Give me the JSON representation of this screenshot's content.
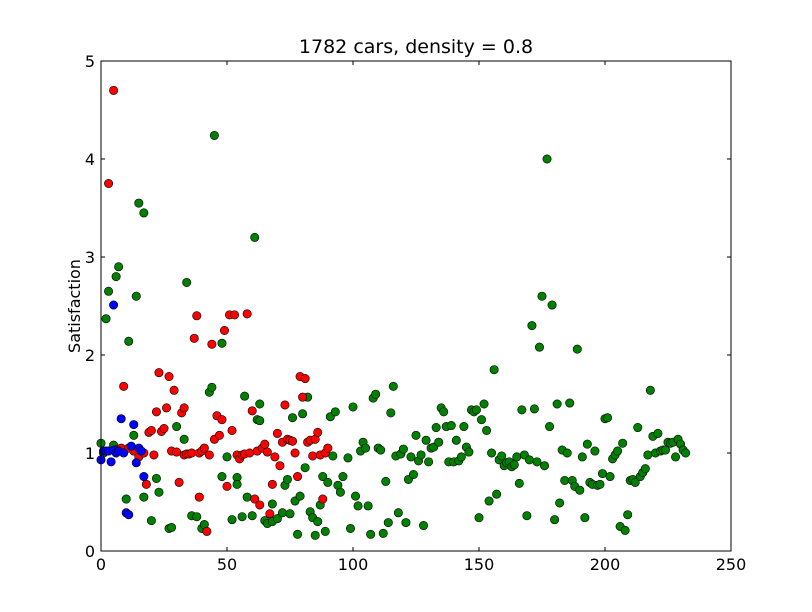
{
  "chart_data": {
    "type": "scatter",
    "title": "1782 cars, density = 0.8",
    "xlabel": "",
    "ylabel": "Satisfaction",
    "xlim": [
      0,
      250
    ],
    "ylim": [
      0,
      5
    ],
    "xticks": [
      "0",
      "50",
      "100",
      "150",
      "200",
      "250"
    ],
    "yticks": [
      "0",
      "1",
      "2",
      "3",
      "4",
      "5"
    ],
    "grid": false,
    "series": [
      {
        "color": "#008000",
        "points": [
          [
            0,
            1.1
          ],
          [
            1,
            1.0
          ],
          [
            2,
            2.37
          ],
          [
            3,
            2.65
          ],
          [
            5,
            1.08
          ],
          [
            6,
            2.8
          ],
          [
            7,
            2.9
          ],
          [
            10,
            0.53
          ],
          [
            11,
            2.14
          ],
          [
            13,
            1.18
          ],
          [
            14,
            2.6
          ],
          [
            15,
            3.55
          ],
          [
            16,
            1.0
          ],
          [
            17,
            3.45
          ],
          [
            17,
            0.55
          ],
          [
            20,
            0.31
          ],
          [
            22,
            0.74
          ],
          [
            23,
            0.6
          ],
          [
            27,
            0.23
          ],
          [
            28,
            0.24
          ],
          [
            30,
            1.27
          ],
          [
            33,
            1.14
          ],
          [
            34,
            2.74
          ],
          [
            36,
            0.36
          ],
          [
            38,
            0.35
          ],
          [
            40,
            0.23
          ],
          [
            41,
            0.27
          ],
          [
            43,
            1.62
          ],
          [
            44,
            1.67
          ],
          [
            45,
            4.24
          ],
          [
            48,
            2.12
          ],
          [
            48,
            0.76
          ],
          [
            50,
            0.96
          ],
          [
            52,
            0.32
          ],
          [
            54,
            0.75
          ],
          [
            54,
            0.68
          ],
          [
            56,
            0.35
          ],
          [
            57,
            1.58
          ],
          [
            58,
            0.55
          ],
          [
            60,
            0.36
          ],
          [
            61,
            3.2
          ],
          [
            62,
            1.34
          ],
          [
            63,
            1.5
          ],
          [
            63,
            1.33
          ],
          [
            65,
            0.31
          ],
          [
            66,
            0.28
          ],
          [
            68,
            0.3
          ],
          [
            68,
            0.48
          ],
          [
            70,
            0.33
          ],
          [
            72,
            0.39
          ],
          [
            73,
            0.67
          ],
          [
            74,
            0.73
          ],
          [
            75,
            0.38
          ],
          [
            76,
            1.36
          ],
          [
            77,
            0.51
          ],
          [
            78,
            0.17
          ],
          [
            79,
            0.56
          ],
          [
            80,
            1.4
          ],
          [
            81,
            0.85
          ],
          [
            82,
            1.57
          ],
          [
            83,
            0.4
          ],
          [
            84,
            0.34
          ],
          [
            85,
            0.16
          ],
          [
            86,
            0.3
          ],
          [
            87,
            0.47
          ],
          [
            88,
            0.76
          ],
          [
            89,
            0.2
          ],
          [
            90,
            0.7
          ],
          [
            91,
            1.37
          ],
          [
            92,
            0.97
          ],
          [
            93,
            1.42
          ],
          [
            94,
            0.67
          ],
          [
            95,
            0.6
          ],
          [
            96,
            0.76
          ],
          [
            98,
            0.95
          ],
          [
            99,
            0.23
          ],
          [
            100,
            1.47
          ],
          [
            101,
            0.56
          ],
          [
            102,
            0.46
          ],
          [
            103,
            1.02
          ],
          [
            104,
            1.11
          ],
          [
            105,
            1.05
          ],
          [
            106,
            0.46
          ],
          [
            107,
            0.17
          ],
          [
            108,
            1.56
          ],
          [
            109,
            1.6
          ],
          [
            110,
            1.05
          ],
          [
            111,
            1.03
          ],
          [
            112,
            0.18
          ],
          [
            113,
            0.71
          ],
          [
            114,
            0.29
          ],
          [
            115,
            1.41
          ],
          [
            116,
            1.68
          ],
          [
            117,
            0.97
          ],
          [
            118,
            0.39
          ],
          [
            119,
            0.99
          ],
          [
            120,
            1.04
          ],
          [
            121,
            0.29
          ],
          [
            122,
            0.73
          ],
          [
            123,
            0.96
          ],
          [
            124,
            0.78
          ],
          [
            125,
            1.18
          ],
          [
            126,
            0.92
          ],
          [
            127,
            0.98
          ],
          [
            128,
            0.26
          ],
          [
            129,
            1.13
          ],
          [
            130,
            0.91
          ],
          [
            131,
            1.05
          ],
          [
            132,
            1.06
          ],
          [
            133,
            1.26
          ],
          [
            134,
            1.11
          ],
          [
            135,
            1.46
          ],
          [
            136,
            1.42
          ],
          [
            137,
            1.27
          ],
          [
            138,
            0.91
          ],
          [
            139,
            1.28
          ],
          [
            140,
            0.91
          ],
          [
            141,
            1.13
          ],
          [
            142,
            0.92
          ],
          [
            143,
            0.96
          ],
          [
            144,
            1.27
          ],
          [
            145,
            1.06
          ],
          [
            146,
            1.01
          ],
          [
            147,
            1.44
          ],
          [
            148,
            1.42
          ],
          [
            149,
            1.44
          ],
          [
            150,
            0.34
          ],
          [
            151,
            1.34
          ],
          [
            152,
            1.5
          ],
          [
            153,
            1.23
          ],
          [
            154,
            0.51
          ],
          [
            155,
            1.0
          ],
          [
            156,
            1.85
          ],
          [
            157,
            0.58
          ],
          [
            158,
            0.93
          ],
          [
            159,
            0.97
          ],
          [
            160,
            0.87
          ],
          [
            161,
            0.9
          ],
          [
            162,
            0.91
          ],
          [
            163,
            0.86
          ],
          [
            164,
            0.88
          ],
          [
            165,
            0.96
          ],
          [
            166,
            0.69
          ],
          [
            167,
            1.44
          ],
          [
            168,
            0.98
          ],
          [
            169,
            0.36
          ],
          [
            170,
            0.93
          ],
          [
            171,
            2.3
          ],
          [
            172,
            1.45
          ],
          [
            173,
            0.91
          ],
          [
            174,
            2.08
          ],
          [
            175,
            2.6
          ],
          [
            176,
            0.87
          ],
          [
            177,
            4.0
          ],
          [
            178,
            1.27
          ],
          [
            179,
            2.51
          ],
          [
            180,
            0.32
          ],
          [
            181,
            1.5
          ],
          [
            182,
            0.49
          ],
          [
            183,
            1.03
          ],
          [
            184,
            0.72
          ],
          [
            185,
            1.0
          ],
          [
            186,
            1.51
          ],
          [
            187,
            0.72
          ],
          [
            188,
            0.66
          ],
          [
            189,
            2.06
          ],
          [
            190,
            0.62
          ],
          [
            191,
            0.96
          ],
          [
            192,
            0.34
          ],
          [
            193,
            1.09
          ],
          [
            194,
            0.7
          ],
          [
            195,
            0.68
          ],
          [
            196,
            1.02
          ],
          [
            197,
            0.67
          ],
          [
            198,
            0.68
          ],
          [
            199,
            0.79
          ],
          [
            200,
            1.35
          ],
          [
            201,
            1.36
          ],
          [
            202,
            0.76
          ],
          [
            203,
            0.94
          ],
          [
            204,
            0.98
          ],
          [
            205,
            1.02
          ],
          [
            206,
            0.25
          ],
          [
            207,
            1.1
          ],
          [
            208,
            0.21
          ],
          [
            209,
            0.37
          ],
          [
            210,
            0.72
          ],
          [
            211,
            0.73
          ],
          [
            212,
            0.7
          ],
          [
            213,
            1.26
          ],
          [
            214,
            0.76
          ],
          [
            215,
            0.8
          ],
          [
            216,
            0.84
          ],
          [
            217,
            0.98
          ],
          [
            218,
            1.64
          ],
          [
            219,
            1.17
          ],
          [
            220,
            1.0
          ],
          [
            221,
            1.2
          ],
          [
            222,
            1.02
          ],
          [
            223,
            1.03
          ],
          [
            224,
            1.03
          ],
          [
            225,
            1.11
          ],
          [
            226,
            1.1
          ],
          [
            227,
            1.11
          ],
          [
            228,
            0.96
          ],
          [
            229,
            1.14
          ],
          [
            230,
            1.09
          ],
          [
            231,
            1.03
          ],
          [
            232,
            1.0
          ]
        ]
      },
      {
        "color": "#ff0000",
        "points": [
          [
            3,
            3.75
          ],
          [
            5,
            4.7
          ],
          [
            6,
            1.03
          ],
          [
            8,
            1.05
          ],
          [
            9,
            1.68
          ],
          [
            11,
            1.05
          ],
          [
            13,
            1.02
          ],
          [
            15,
            0.96
          ],
          [
            17,
            1.0
          ],
          [
            18,
            0.68
          ],
          [
            19,
            1.21
          ],
          [
            20,
            1.23
          ],
          [
            21,
            0.98
          ],
          [
            22,
            1.42
          ],
          [
            23,
            1.82
          ],
          [
            24,
            1.22
          ],
          [
            25,
            1.25
          ],
          [
            26,
            1.46
          ],
          [
            27,
            1.78
          ],
          [
            28,
            1.02
          ],
          [
            29,
            1.64
          ],
          [
            30,
            1.01
          ],
          [
            31,
            0.7
          ],
          [
            32,
            1.41
          ],
          [
            33,
            1.46
          ],
          [
            33,
            0.98
          ],
          [
            34,
            0.99
          ],
          [
            35,
            0.99
          ],
          [
            36,
            1.0
          ],
          [
            37,
            2.17
          ],
          [
            38,
            2.4
          ],
          [
            39,
            1.0
          ],
          [
            39,
            0.55
          ],
          [
            40,
            1.02
          ],
          [
            41,
            1.05
          ],
          [
            42,
            0.2
          ],
          [
            43,
            0.98
          ],
          [
            44,
            2.11
          ],
          [
            45,
            1.14
          ],
          [
            46,
            1.38
          ],
          [
            47,
            1.18
          ],
          [
            48,
            1.34
          ],
          [
            49,
            2.25
          ],
          [
            50,
            0.66
          ],
          [
            51,
            2.41
          ],
          [
            52,
            1.23
          ],
          [
            53,
            2.41
          ],
          [
            54,
            0.98
          ],
          [
            55,
            0.94
          ],
          [
            56,
            0.98
          ],
          [
            57,
            0.99
          ],
          [
            58,
            2.42
          ],
          [
            59,
            1.0
          ],
          [
            60,
            1.43
          ],
          [
            61,
            0.53
          ],
          [
            62,
            1.02
          ],
          [
            63,
            0.47
          ],
          [
            64,
            1.05
          ],
          [
            65,
            1.09
          ],
          [
            66,
            1.01
          ],
          [
            67,
            0.38
          ],
          [
            68,
            0.68
          ],
          [
            69,
            0.96
          ],
          [
            70,
            1.2
          ],
          [
            71,
            0.87
          ],
          [
            72,
            1.11
          ],
          [
            73,
            1.49
          ],
          [
            74,
            1.14
          ],
          [
            75,
            1.13
          ],
          [
            76,
            1.12
          ],
          [
            77,
            1.0
          ],
          [
            78,
            0.76
          ],
          [
            79,
            1.78
          ],
          [
            80,
            1.57
          ],
          [
            81,
            1.76
          ],
          [
            82,
            1.11
          ],
          [
            83,
            1.13
          ],
          [
            84,
            0.97
          ],
          [
            85,
            1.14
          ],
          [
            86,
            1.21
          ],
          [
            87,
            0.98
          ],
          [
            88,
            0.53
          ],
          [
            89,
            1.0
          ],
          [
            90,
            1.05
          ]
        ]
      },
      {
        "color": "#0000ff",
        "points": [
          [
            0,
            0.93
          ],
          [
            1,
            1.02
          ],
          [
            2,
            1.02
          ],
          [
            3,
            1.02
          ],
          [
            4,
            0.91
          ],
          [
            5,
            2.51
          ],
          [
            5,
            1.03
          ],
          [
            6,
            1.0
          ],
          [
            7,
            1.02
          ],
          [
            8,
            1.35
          ],
          [
            9,
            1.0
          ],
          [
            10,
            0.39
          ],
          [
            11,
            0.37
          ],
          [
            12,
            1.07
          ],
          [
            13,
            1.29
          ],
          [
            14,
            0.9
          ],
          [
            15,
            1.05
          ],
          [
            16,
            1.02
          ],
          [
            17,
            0.76
          ]
        ]
      }
    ]
  }
}
